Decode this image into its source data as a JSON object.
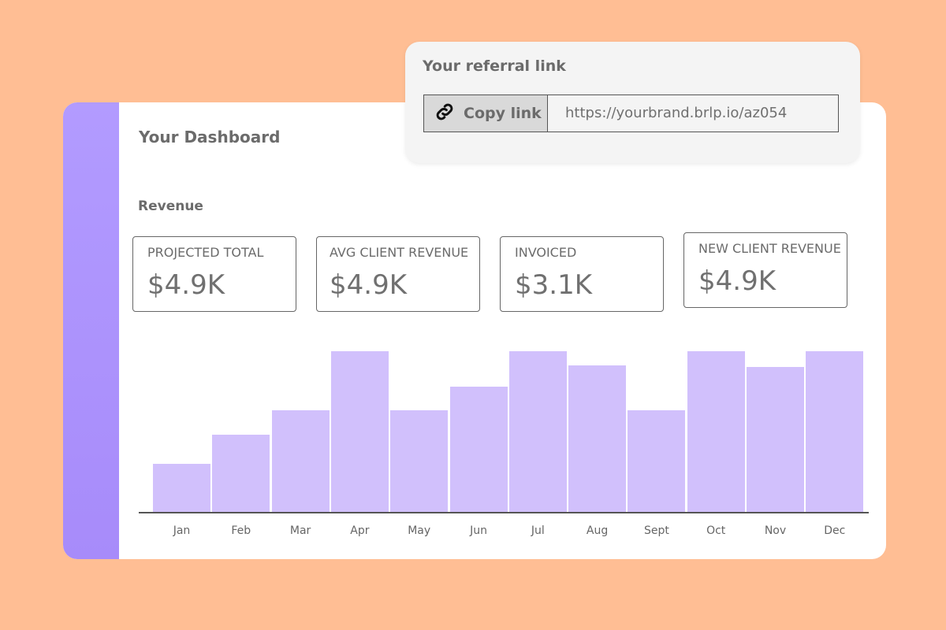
{
  "dashboard": {
    "title": "Your Dashboard",
    "section": "Revenue"
  },
  "stats": [
    {
      "label": "PROJECTED TOTAL",
      "value": "$4.9K"
    },
    {
      "label": "AVG CLIENT REVENUE",
      "value": "$4.9K"
    },
    {
      "label": "INVOICED",
      "value": "$3.1K"
    },
    {
      "label": "NEW CLIENT REVENUE",
      "value": "$4.9K"
    }
  ],
  "referral": {
    "title": "Your referral link",
    "copy_label": "Copy link",
    "url": "https://yourbrand.brlp.io/az054"
  },
  "chart_data": {
    "type": "bar",
    "title": "",
    "xlabel": "",
    "ylabel": "",
    "categories": [
      "Jan",
      "Feb",
      "Mar",
      "Apr",
      "May",
      "Jun",
      "Jul",
      "Aug",
      "Sept",
      "Oct",
      "Nov",
      "Dec"
    ],
    "values": [
      30,
      48,
      63,
      100,
      63,
      78,
      100,
      91,
      63,
      100,
      90,
      100
    ],
    "ylim": [
      0,
      100
    ],
    "bar_color": "#d1c0fc"
  },
  "colors": {
    "background": "#ffbe94",
    "sidebar": "#a78bfa"
  }
}
